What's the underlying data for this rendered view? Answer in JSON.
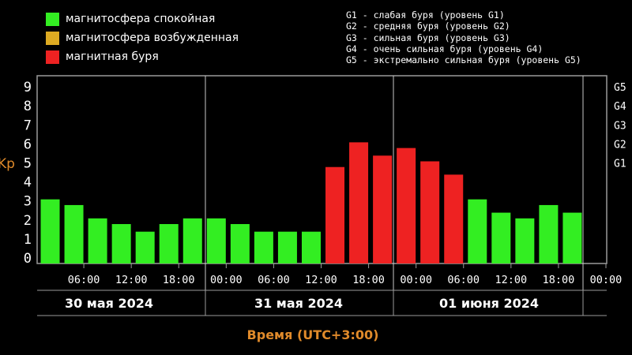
{
  "legend": [
    {
      "label": "магнитосфера спокойная",
      "color": "#33ee22"
    },
    {
      "label": "магнитосфера возбужденная",
      "color": "#ddaa22"
    },
    {
      "label": "магнитная буря",
      "color": "#ee2222"
    }
  ],
  "g_legend": [
    "G1 - слабая буря (уровень G1)",
    "G2 - средняя буря (уровень G2)",
    "G3 - сильная буря (уровень G3)",
    "G4 - очень сильная буря (уровень G4)",
    "G5 - экстремально сильная буря (уровень G5)"
  ],
  "chart_data": {
    "type": "bar",
    "ylabel": "Kp",
    "xlabel": "Время (UTC+3:00)",
    "ylim": [
      0,
      9
    ],
    "yticks": [
      "0",
      "1",
      "2",
      "3",
      "4",
      "5",
      "6",
      "7",
      "8",
      "9"
    ],
    "g_levels": [
      {
        "label": "G1",
        "value": 5
      },
      {
        "label": "G2",
        "value": 6
      },
      {
        "label": "G3",
        "value": 7
      },
      {
        "label": "G4",
        "value": 8
      },
      {
        "label": "G5",
        "value": 9
      }
    ],
    "xticks": [
      "06:00",
      "12:00",
      "18:00",
      "00:00",
      "06:00",
      "12:00",
      "18:00",
      "00:00",
      "06:00",
      "12:00",
      "18:00",
      "00:00"
    ],
    "days": [
      "30 мая 2024",
      "31 мая 2024",
      "01 июня 2024"
    ],
    "values": [
      3.0,
      2.7,
      2.0,
      1.7,
      1.3,
      1.7,
      2.0,
      2.0,
      1.7,
      1.3,
      1.3,
      1.3,
      4.7,
      6.0,
      5.3,
      5.7,
      5.0,
      4.3,
      3.0,
      2.3,
      2.0,
      2.7,
      2.3
    ],
    "levels": [
      "quiet",
      "quiet",
      "quiet",
      "quiet",
      "quiet",
      "quiet",
      "quiet",
      "quiet",
      "quiet",
      "quiet",
      "quiet",
      "quiet",
      "storm",
      "storm",
      "storm",
      "storm",
      "storm",
      "storm",
      "quiet",
      "quiet",
      "quiet",
      "quiet",
      "quiet"
    ],
    "colors": {
      "quiet": "#33ee22",
      "active": "#ddaa22",
      "storm": "#ee2222"
    },
    "grid": false
  }
}
